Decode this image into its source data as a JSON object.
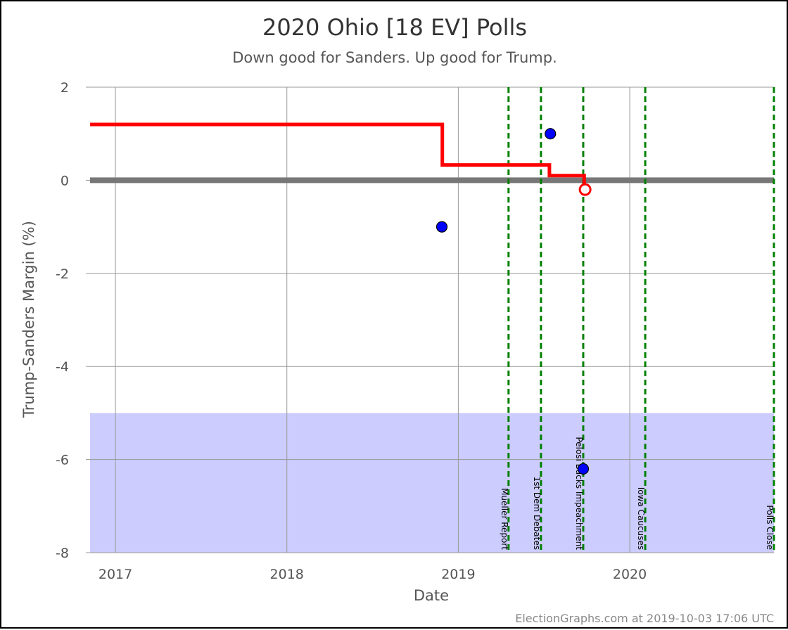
{
  "chart_data": {
    "type": "line",
    "title": "2020 Ohio [18 EV] Polls",
    "subtitle": "Down good for Sanders. Up good for Trump.",
    "xlabel": "Date",
    "ylabel": "Trump-Sanders Margin (%)",
    "credit": "ElectionGraphs.com at 2019-10-03 17:06 UTC",
    "xlim": [
      "2016-11-08",
      "2020-11-03"
    ],
    "ylim": [
      -8,
      2
    ],
    "x_ticks": [
      "2017",
      "2018",
      "2019",
      "2020"
    ],
    "y_ticks": [
      "2",
      "0",
      "-2",
      "-4",
      "-6",
      "-8"
    ],
    "grid": true,
    "shaded_region": {
      "from": -8,
      "to": -5,
      "color": "#ccccff"
    },
    "zero_band_color": "#777777",
    "average_color": "#ff0000",
    "poll_color": "#0000ff",
    "event_color": "#008000",
    "series": [
      {
        "type": "step",
        "points": [
          {
            "date": "2016-11-08",
            "value": 1.2
          },
          {
            "date": "2018-11-28",
            "value": 1.2
          },
          {
            "date": "2018-11-28",
            "value": 0.33
          },
          {
            "date": "2019-07-14",
            "value": 0.33
          },
          {
            "date": "2019-07-14",
            "value": 0.1
          },
          {
            "date": "2019-09-26",
            "value": 0.1
          },
          {
            "date": "2019-09-26",
            "value": -0.07
          }
        ]
      }
    ],
    "current_average": {
      "date": "2019-09-28",
      "value": -0.2
    },
    "polls": [
      {
        "date": "2018-11-27",
        "value": -1
      },
      {
        "date": "2019-07-16",
        "value": 1
      },
      {
        "date": "2019-09-24",
        "value": -6.2
      }
    ],
    "events": [
      {
        "date": "2019-04-18",
        "label": "Mueller Report"
      },
      {
        "date": "2019-06-26",
        "label": "1st Dem Debates"
      },
      {
        "date": "2019-09-24",
        "label": "Pelosi Backs Impeachment"
      },
      {
        "date": "2020-02-03",
        "label": "Iowa Caucuses"
      },
      {
        "date": "2020-11-03",
        "label": "Polls Close"
      }
    ]
  }
}
